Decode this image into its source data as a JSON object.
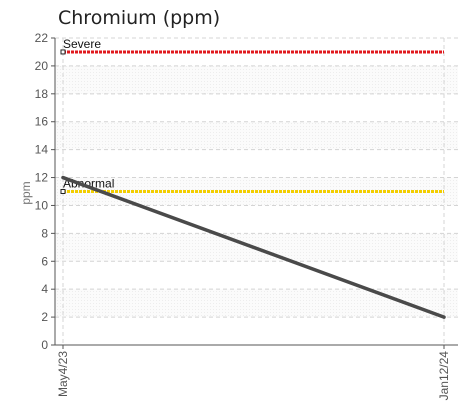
{
  "chart_data": {
    "type": "line",
    "title": "Chromium (ppm)",
    "ylabel": "ppm",
    "xlabel": "",
    "ylim": [
      0,
      22
    ],
    "y_ticks": [
      "0",
      "2",
      "4",
      "6",
      "8",
      "10",
      "12",
      "14",
      "16",
      "18",
      "20",
      "22"
    ],
    "x": [
      "May4/23",
      "Jan12/24"
    ],
    "series": [
      {
        "values": [
          12,
          2
        ],
        "color": "#4a4a4a"
      }
    ],
    "thresholds": [
      {
        "label": "Severe",
        "value": 21,
        "color": "#e0191e"
      },
      {
        "label": "Abnormal",
        "value": 11,
        "color": "#f2cd00"
      }
    ],
    "grid": true
  }
}
